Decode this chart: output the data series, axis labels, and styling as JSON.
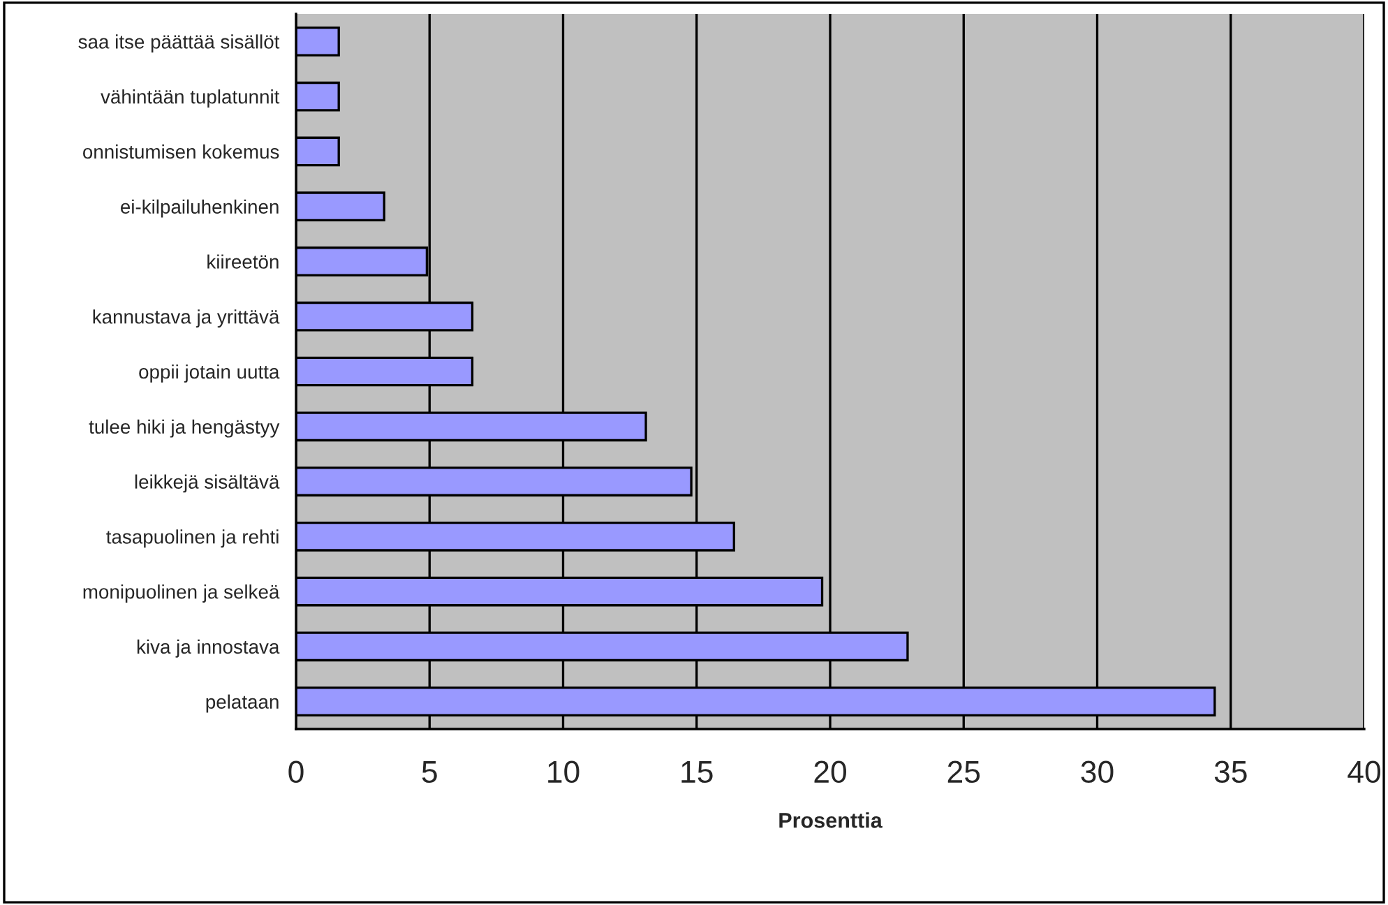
{
  "chart_data": {
    "type": "bar",
    "orientation": "horizontal",
    "xlabel": "Prosenttia",
    "categories": [
      "saa itse päättää sisällöt",
      "vähintään tuplatunnit",
      "onnistumisen kokemus",
      "ei-kilpailuhenkinen",
      "kiireetön",
      "kannustava ja yrittävä",
      "oppii jotain uutta",
      "tulee hiki ja hengästyy",
      "leikkejä sisältävä",
      "tasapuolinen ja rehti",
      "monipuolinen ja selkeä",
      "kiva ja innostava",
      "pelataan"
    ],
    "values": [
      1.6,
      1.6,
      1.6,
      3.3,
      4.9,
      6.6,
      6.6,
      13.1,
      14.8,
      16.4,
      19.7,
      22.9,
      34.4
    ],
    "color": "#9999ff",
    "xlim": [
      0,
      40
    ],
    "xticks": [
      0,
      5,
      10,
      15,
      20,
      25,
      30,
      35,
      40
    ],
    "grid": "x",
    "legend": false
  }
}
